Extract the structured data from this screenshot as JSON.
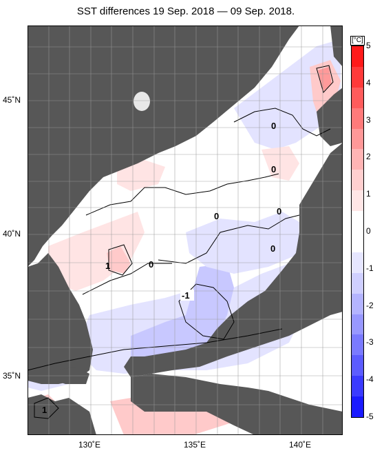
{
  "title": "SST differences 19 Sep. 2018 — 09 Sep. 2018.",
  "colorbar": {
    "unit": "[°C]",
    "ticks": [
      "5",
      "4",
      "3",
      "2",
      "1",
      "0",
      "-1",
      "-2",
      "-3",
      "-4",
      "-5"
    ],
    "colors": [
      "#ff1a1a",
      "#ff3a3a",
      "#ff5c5c",
      "#ff7a7a",
      "#ff9898",
      "#ffb4b4",
      "#ffcfcf",
      "#ffe6e6",
      "#ffffff",
      "#ffffff",
      "#e6e6ff",
      "#cfcfff",
      "#b4b4ff",
      "#9898ff",
      "#7a7aff",
      "#5c5cff",
      "#3a3aff",
      "#1a1aff"
    ]
  },
  "axes": {
    "lat_labels": [
      "45˚N",
      "40˚N",
      "35˚N"
    ],
    "lon_labels": [
      "130˚E",
      "135˚E",
      "140˚E"
    ]
  },
  "contour_labels": [
    "0",
    "0",
    "0",
    "0",
    "0",
    "0",
    "-1",
    "1",
    "1"
  ],
  "colors": {
    "land": "#575757",
    "grid": "#999999",
    "neg_light": "#e3e3ff",
    "neg_mid": "#c8c8ff",
    "pos_light": "#ffe4e4",
    "pos_mid": "#ffcaca",
    "pos_strong": "#ff9a9a"
  }
}
